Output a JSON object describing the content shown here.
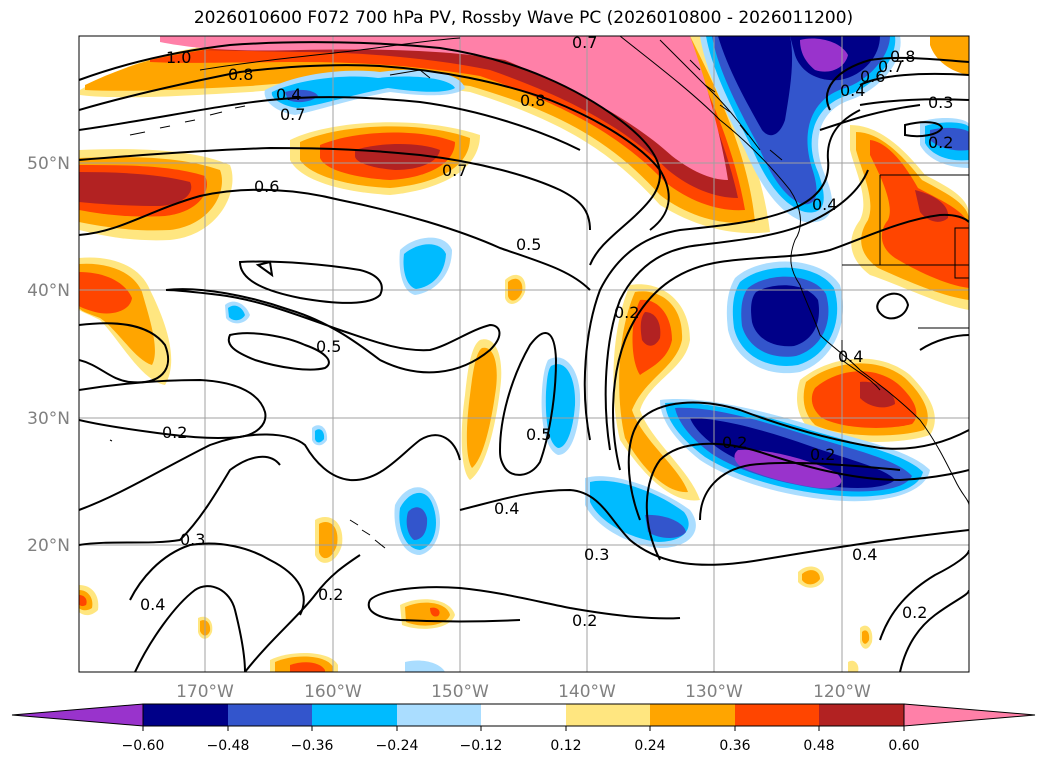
{
  "title": "2026010600 F072 700 hPa PV, Rossby Wave PC (2026010800 - 2026011200)",
  "lon_ticks": [
    "170°W",
    "160°W",
    "150°W",
    "140°W",
    "130°W",
    "120°W"
  ],
  "lat_ticks": [
    "50°N",
    "40°N",
    "30°N",
    "20°N"
  ],
  "colorbar": {
    "ticks": [
      "−0.60",
      "−0.48",
      "−0.36",
      "−0.24",
      "−0.12",
      "0.12",
      "0.24",
      "0.36",
      "0.48",
      "0.60"
    ],
    "colors": [
      "#9933cc",
      "#000088",
      "#3355cc",
      "#00bbff",
      "#aaddff",
      "#ffffff",
      "#ffe680",
      "#ffa500",
      "#ff4500",
      "#b22222",
      "#ff80a8"
    ]
  },
  "contour_labels": [
    "1.0",
    "0.8",
    "0.7",
    "0.8",
    "0.7",
    "0.8",
    "0.7",
    "0.6",
    "0.4",
    "0.3",
    "0.2",
    "0.7",
    "0.6",
    "0.5",
    "0.5",
    "0.4",
    "0.2",
    "0.5",
    "0.4",
    "0.2",
    "0.3",
    "0.2",
    "0.4",
    "0.3",
    "0.2",
    "0.4",
    "0.2",
    "0.4",
    "0.2",
    "0.4",
    "0.2"
  ],
  "fill_colors": {
    "pink": "#ff80a8",
    "darkred": "#b22222",
    "red": "#ff4500",
    "orange": "#ffa500",
    "yellow": "#ffe680",
    "lightblue": "#aaddff",
    "cyan": "#00bbff",
    "blue": "#3355cc",
    "navy": "#000088",
    "purple": "#9933cc"
  }
}
